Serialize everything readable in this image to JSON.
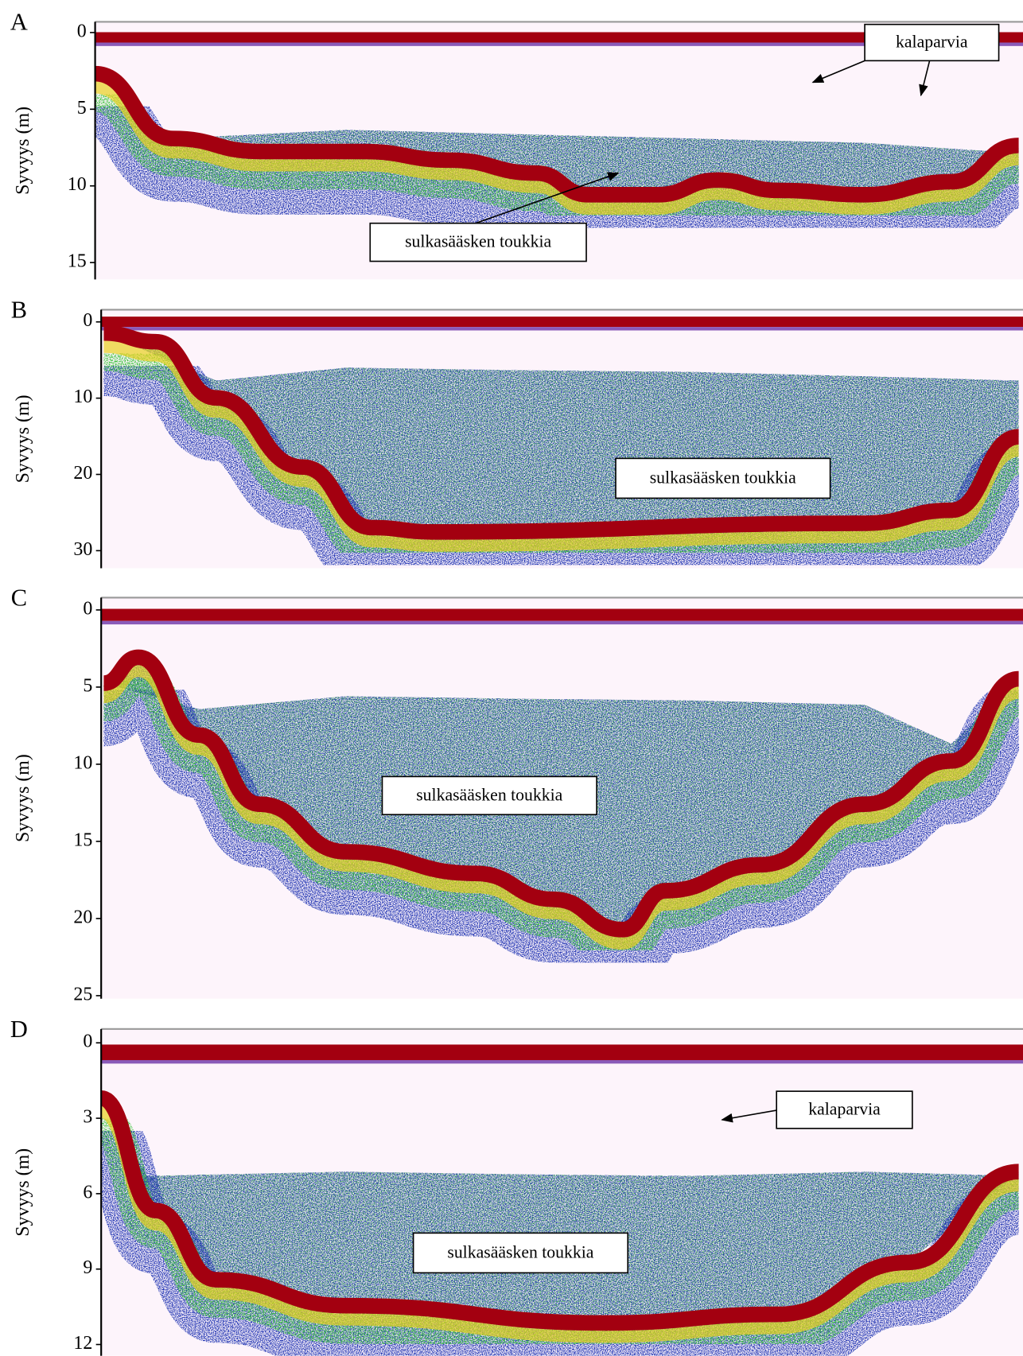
{
  "chart_data": [
    {
      "type": "echogram",
      "panel_label": "A",
      "ylabel": "Syvyys (m)",
      "ylim": [
        -0.7,
        16.1
      ],
      "yticks": [
        0,
        5,
        10,
        15
      ],
      "annotations": [
        "kalaparvia",
        "sulkasääsken toukkia"
      ]
    },
    {
      "type": "echogram",
      "panel_label": "B",
      "ylabel": "Syvyys (m)",
      "ylim": [
        -1.6,
        32.3
      ],
      "yticks": [
        0,
        10,
        20,
        30
      ],
      "annotations": [
        "sulkasääsken toukkia"
      ]
    },
    {
      "type": "echogram",
      "panel_label": "C",
      "ylabel": "Syvyys (m)",
      "ylim": [
        -0.8,
        25.2
      ],
      "yticks": [
        0,
        5,
        10,
        15,
        20,
        25
      ],
      "annotations": [
        "sulkasääsken toukkia"
      ]
    },
    {
      "type": "echogram",
      "panel_label": "D",
      "ylabel": "Syvyys (m)",
      "ylim": [
        -0.55,
        12.45
      ],
      "yticks": [
        0,
        3,
        6,
        9,
        12
      ],
      "annotations": [
        "kalaparvia",
        "sulkasääsken toukkia"
      ]
    }
  ]
}
